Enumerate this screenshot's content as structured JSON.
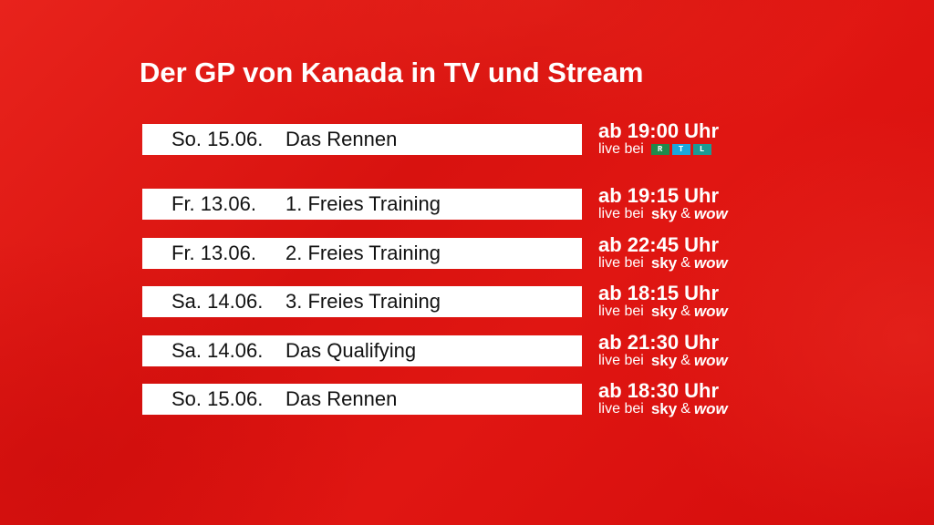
{
  "title": "Der GP von Kanada in TV und Stream",
  "live_prefix": "live bei",
  "rtl_letters": [
    "R",
    "T",
    "L"
  ],
  "sky": "sky",
  "amp": "&",
  "wow": "wow",
  "rows": [
    {
      "date": "So. 15.06.",
      "event": "Das Rennen",
      "time": "ab 19:00 Uhr",
      "broadcaster": "RTL"
    },
    {
      "date": "Fr. 13.06.",
      "event": "1. Freies Training",
      "time": "ab 19:15 Uhr",
      "broadcaster": "sky & wow"
    },
    {
      "date": "Fr. 13.06.",
      "event": "2. Freies Training",
      "time": "ab 22:45 Uhr",
      "broadcaster": "sky & wow"
    },
    {
      "date": "Sa. 14.06.",
      "event": "3. Freies Training",
      "time": "ab 18:15 Uhr",
      "broadcaster": "sky & wow"
    },
    {
      "date": "Sa. 14.06.",
      "event": "Das Qualifying",
      "time": "ab 21:30 Uhr",
      "broadcaster": "sky & wow"
    },
    {
      "date": "So. 15.06.",
      "event": "Das Rennen",
      "time": "ab 18:30 Uhr",
      "broadcaster": "sky & wow"
    }
  ],
  "colors": {
    "bg": "#e01612",
    "rtl": [
      "#1f8a4c",
      "#1aa7dc",
      "#1b9b94"
    ]
  }
}
